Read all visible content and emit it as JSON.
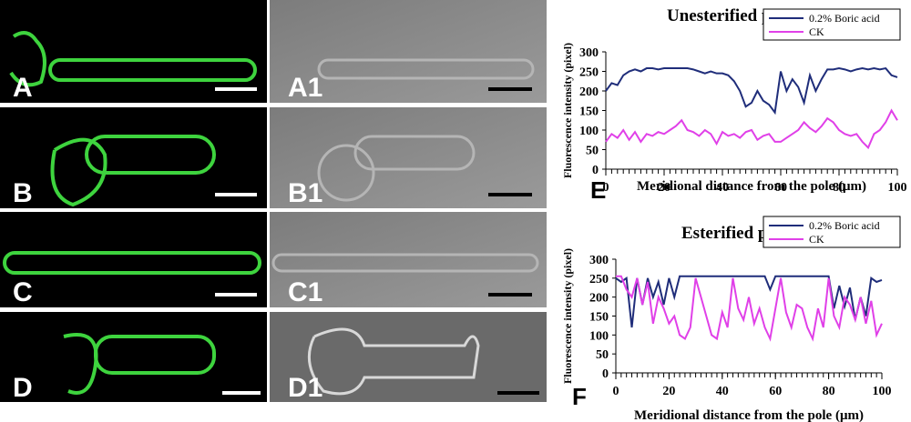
{
  "panels": {
    "A": "A",
    "A1": "A1",
    "B": "B",
    "B1": "B1",
    "C": "C",
    "C1": "C1",
    "D": "D",
    "D1": "D1"
  },
  "chart_data": [
    {
      "type": "line",
      "label": "E",
      "title": "Unesterified pectins",
      "xlabel": "Meridional distance from the pole (μm)",
      "ylabel": "Fluorescence intensity (pixel)",
      "x": [
        0,
        2,
        4,
        6,
        8,
        10,
        12,
        14,
        16,
        18,
        20,
        22,
        24,
        26,
        28,
        30,
        32,
        34,
        36,
        38,
        40,
        42,
        44,
        46,
        48,
        50,
        52,
        54,
        56,
        58,
        60,
        62,
        64,
        66,
        68,
        70,
        72,
        74,
        76,
        78,
        80,
        82,
        84,
        86,
        88,
        90,
        92,
        94,
        96,
        98,
        100
      ],
      "series": [
        {
          "name": "0.2% Boric acid",
          "color": "#1f2d7a",
          "values": [
            200,
            220,
            215,
            240,
            250,
            255,
            250,
            258,
            258,
            255,
            258,
            258,
            258,
            258,
            258,
            255,
            250,
            245,
            250,
            245,
            245,
            240,
            225,
            200,
            160,
            170,
            200,
            175,
            165,
            145,
            250,
            200,
            230,
            210,
            170,
            240,
            200,
            230,
            255,
            255,
            258,
            255,
            250,
            255,
            258,
            255,
            258,
            255,
            258,
            240,
            235
          ]
        },
        {
          "name": "CK",
          "color": "#e040e8",
          "values": [
            70,
            90,
            80,
            100,
            75,
            95,
            70,
            90,
            85,
            95,
            90,
            100,
            110,
            125,
            100,
            95,
            85,
            100,
            90,
            65,
            95,
            85,
            90,
            80,
            95,
            100,
            75,
            85,
            90,
            70,
            70,
            80,
            90,
            100,
            120,
            105,
            95,
            110,
            130,
            120,
            100,
            90,
            85,
            90,
            70,
            55,
            90,
            100,
            120,
            150,
            125
          ]
        }
      ],
      "xlim": [
        0,
        100
      ],
      "xticks": [
        0,
        20,
        40,
        60,
        80,
        100
      ],
      "ylim": [
        0,
        300
      ],
      "yticks": [
        0,
        50,
        100,
        150,
        200,
        250,
        300
      ]
    },
    {
      "type": "line",
      "label": "F",
      "title": "Esterified pectins",
      "xlabel": "Meridional distance from the pole (μm)",
      "ylabel": "Fluorescence intensity (pixel)",
      "x": [
        0,
        2,
        4,
        6,
        8,
        10,
        12,
        14,
        16,
        18,
        20,
        22,
        24,
        26,
        28,
        30,
        32,
        34,
        36,
        38,
        40,
        42,
        44,
        46,
        48,
        50,
        52,
        54,
        56,
        58,
        60,
        62,
        64,
        66,
        68,
        70,
        72,
        74,
        76,
        78,
        80,
        82,
        84,
        86,
        88,
        90,
        92,
        94,
        96,
        98,
        100
      ],
      "series": [
        {
          "name": "0.2% Boric acid",
          "color": "#1f2d7a",
          "values": [
            250,
            240,
            250,
            120,
            250,
            180,
            250,
            200,
            240,
            180,
            250,
            200,
            255,
            255,
            255,
            255,
            255,
            255,
            255,
            255,
            255,
            255,
            255,
            255,
            255,
            255,
            255,
            255,
            255,
            220,
            255,
            255,
            255,
            255,
            255,
            255,
            255,
            255,
            255,
            255,
            255,
            170,
            230,
            175,
            225,
            140,
            200,
            150,
            250,
            240,
            245
          ]
        },
        {
          "name": "CK",
          "color": "#e040e8",
          "values": [
            255,
            255,
            220,
            200,
            250,
            180,
            240,
            130,
            200,
            170,
            130,
            150,
            100,
            90,
            120,
            250,
            200,
            150,
            100,
            90,
            160,
            120,
            250,
            170,
            140,
            200,
            130,
            170,
            120,
            90,
            170,
            250,
            160,
            120,
            180,
            170,
            120,
            90,
            170,
            120,
            250,
            150,
            120,
            200,
            180,
            140,
            200,
            130,
            190,
            100,
            130
          ]
        }
      ],
      "xlim": [
        0,
        100
      ],
      "xticks": [
        0,
        20,
        40,
        60,
        80,
        100
      ],
      "ylim": [
        0,
        300
      ],
      "yticks": [
        0,
        50,
        100,
        150,
        200,
        250,
        300
      ]
    }
  ]
}
